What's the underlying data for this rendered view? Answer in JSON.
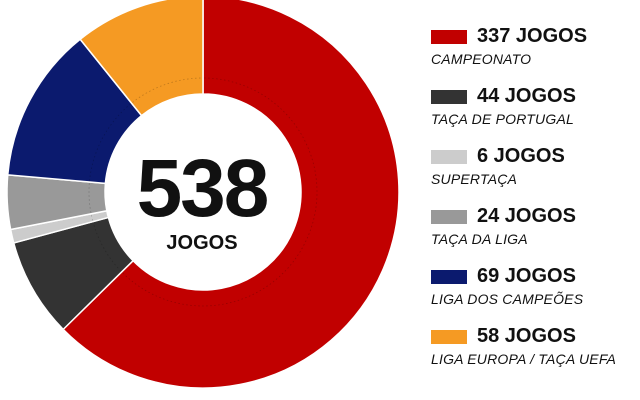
{
  "chart_data": {
    "type": "pie",
    "center_total": "538",
    "center_label": "JOGOS",
    "categories": [
      "CAMPEONATO",
      "TAÇA DE PORTUGAL",
      "SUPERTAÇA",
      "TAÇA DA LIGA",
      "LIGA DOS CAMPEÕES",
      "LIGA EUROPA / TAÇA UEFA"
    ],
    "values": [
      337,
      44,
      6,
      24,
      69,
      58
    ],
    "value_labels": [
      "337 JOGOS",
      "44 JOGOS",
      "6 JOGOS",
      "24 JOGOS",
      "69 JOGOS",
      "58 JOGOS"
    ],
    "colors": [
      "#c10000",
      "#333333",
      "#cccccc",
      "#999999",
      "#0b1a6e",
      "#f59a23"
    ],
    "legend_position": "right",
    "order": "clockwise from top-center"
  }
}
